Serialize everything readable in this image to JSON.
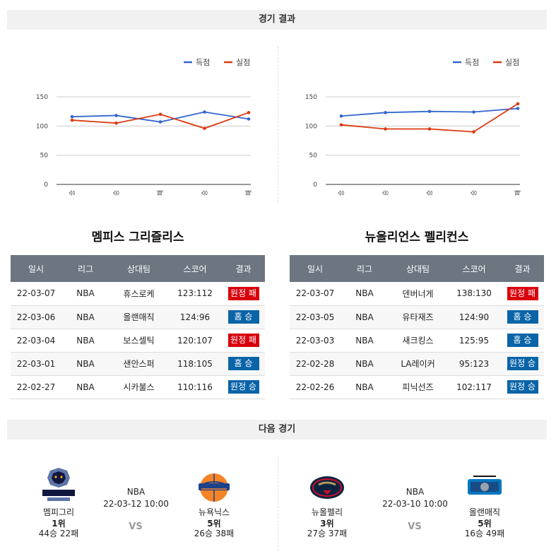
{
  "sections": {
    "results_title": "경기 결과",
    "next_title": "다음 경기"
  },
  "charts": {
    "legend_score": "득점",
    "legend_concede": "실점",
    "colors": {
      "score": "#3366cc",
      "concede": "#dc3912"
    }
  },
  "chart_data": [
    {
      "type": "line",
      "categories": [
        "승",
        "승",
        "패",
        "승",
        "패"
      ],
      "ylim": [
        0,
        150
      ],
      "yticks": [
        0,
        50,
        100,
        150
      ],
      "legend": "top-right",
      "grid": true,
      "series": [
        {
          "name": "득점",
          "values": [
            116,
            118,
            107,
            124,
            112
          ]
        },
        {
          "name": "실점",
          "values": [
            110,
            105,
            120,
            96,
            123
          ]
        }
      ]
    },
    {
      "type": "line",
      "categories": [
        "승",
        "승",
        "승",
        "승",
        "패"
      ],
      "ylim": [
        0,
        150
      ],
      "yticks": [
        0,
        50,
        100,
        150
      ],
      "legend": "top-right",
      "grid": true,
      "series": [
        {
          "name": "득점",
          "values": [
            117,
            123,
            125,
            124,
            130
          ]
        },
        {
          "name": "실점",
          "values": [
            102,
            95,
            95,
            90,
            138
          ]
        }
      ]
    }
  ],
  "table_headers": [
    "일시",
    "리그",
    "상대팀",
    "스코어",
    "결과"
  ],
  "teamL": {
    "title": "멤피스 그리즐리스",
    "rows": [
      {
        "date": "22-03-07",
        "league": "NBA",
        "opp": "휴스로케",
        "score": "123:112",
        "result": "원정 패",
        "win": false
      },
      {
        "date": "22-03-06",
        "league": "NBA",
        "opp": "올랜매직",
        "score": "124:96",
        "result": "홈 승",
        "win": true
      },
      {
        "date": "22-03-04",
        "league": "NBA",
        "opp": "보스셀틱",
        "score": "120:107",
        "result": "원정 패",
        "win": false
      },
      {
        "date": "22-03-01",
        "league": "NBA",
        "opp": "샌안스퍼",
        "score": "118:105",
        "result": "홈 승",
        "win": true
      },
      {
        "date": "22-02-27",
        "league": "NBA",
        "opp": "시카불스",
        "score": "110:116",
        "result": "원정 승",
        "win": true
      }
    ]
  },
  "teamR": {
    "title": "뉴올리언스 펠리컨스",
    "rows": [
      {
        "date": "22-03-07",
        "league": "NBA",
        "opp": "덴버너게",
        "score": "138:130",
        "result": "원정 패",
        "win": false
      },
      {
        "date": "22-03-05",
        "league": "NBA",
        "opp": "유타재즈",
        "score": "124:90",
        "result": "홈 승",
        "win": true
      },
      {
        "date": "22-03-03",
        "league": "NBA",
        "opp": "새크킹스",
        "score": "125:95",
        "result": "홈 승",
        "win": true
      },
      {
        "date": "22-02-28",
        "league": "NBA",
        "opp": "LA레이커",
        "score": "95:123",
        "result": "원정 승",
        "win": true
      },
      {
        "date": "22-02-26",
        "league": "NBA",
        "opp": "피닉선즈",
        "score": "102:117",
        "result": "원정 승",
        "win": true
      }
    ]
  },
  "matchL": {
    "league": "NBA",
    "datetime": "22-03-12 10:00",
    "vs": "VS",
    "home": {
      "name": "멤피그리",
      "rank": "1위",
      "record": "44승 22패",
      "logo_text": "MEMPHIS"
    },
    "away": {
      "name": "뉴욕닉스",
      "rank": "5위",
      "record": "26승 38패",
      "logo_text": "KNICKS"
    }
  },
  "matchR": {
    "league": "NBA",
    "datetime": "22-03-10 10:00",
    "vs": "VS",
    "home": {
      "name": "뉴올펠리",
      "rank": "3위",
      "record": "27승 37패",
      "logo_text": "NEW ORLEANS"
    },
    "away": {
      "name": "올랜매직",
      "rank": "5위",
      "record": "16승 49패",
      "logo_text": "MAGIC"
    }
  }
}
